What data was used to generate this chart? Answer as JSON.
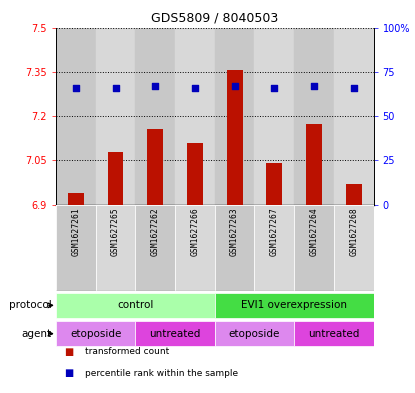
{
  "title": "GDS5809 / 8040503",
  "samples": [
    "GSM1627261",
    "GSM1627265",
    "GSM1627262",
    "GSM1627266",
    "GSM1627263",
    "GSM1627267",
    "GSM1627264",
    "GSM1627268"
  ],
  "bar_values": [
    6.94,
    7.08,
    7.155,
    7.11,
    7.355,
    7.04,
    7.175,
    6.97
  ],
  "dot_values": [
    66,
    66,
    67,
    66,
    67,
    66,
    67,
    66
  ],
  "ylim_left": [
    6.9,
    7.5
  ],
  "ylim_right": [
    0,
    100
  ],
  "yticks_left": [
    6.9,
    7.05,
    7.2,
    7.35,
    7.5
  ],
  "yticks_right": [
    0,
    25,
    50,
    75,
    100
  ],
  "ytick_labels_left": [
    "6.9",
    "7.05",
    "7.2",
    "7.35",
    "7.5"
  ],
  "ytick_labels_right": [
    "0",
    "25",
    "50",
    "75",
    "100%"
  ],
  "bar_color": "#bb1100",
  "dot_color": "#0000bb",
  "bar_base": 6.9,
  "protocol_labels": [
    {
      "text": "control",
      "start": 0,
      "end": 4,
      "color": "#aaffaa"
    },
    {
      "text": "EVI1 overexpression",
      "start": 4,
      "end": 8,
      "color": "#44dd44"
    }
  ],
  "agent_labels": [
    {
      "text": "etoposide",
      "start": 0,
      "end": 2,
      "color": "#dd88ee"
    },
    {
      "text": "untreated",
      "start": 2,
      "end": 4,
      "color": "#dd44dd"
    },
    {
      "text": "etoposide",
      "start": 4,
      "end": 6,
      "color": "#dd88ee"
    },
    {
      "text": "untreated",
      "start": 6,
      "end": 8,
      "color": "#dd44dd"
    }
  ],
  "protocol_row_label": "protocol",
  "agent_row_label": "agent",
  "legend_items": [
    {
      "color": "#bb1100",
      "label": "transformed count"
    },
    {
      "color": "#0000bb",
      "label": "percentile rank within the sample"
    }
  ],
  "grid_yticks": [
    7.05,
    7.2,
    7.35,
    7.5
  ],
  "sample_bg_even": "#c8c8c8",
  "sample_bg_odd": "#d8d8d8"
}
